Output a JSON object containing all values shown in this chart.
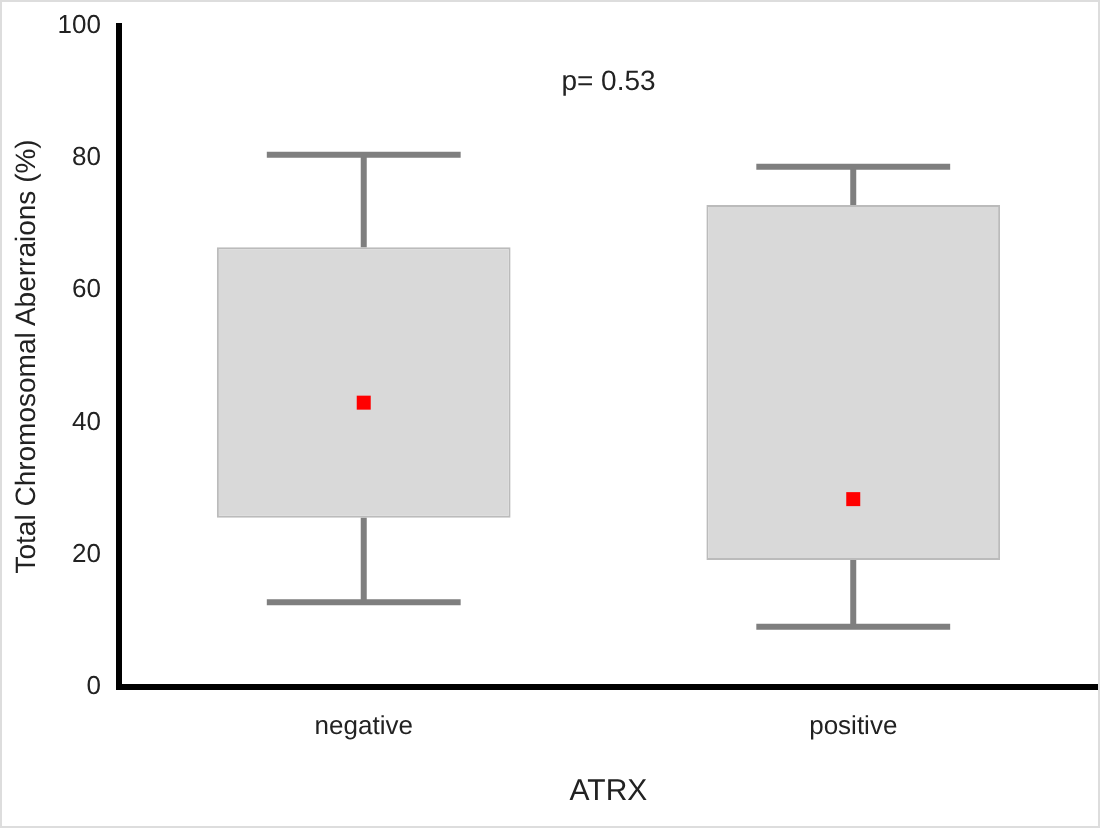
{
  "chart_data": {
    "type": "box",
    "xlabel": "ATRX",
    "ylabel": "Total Chromosomal Aberraions (%)",
    "categories": [
      "negative",
      "positive"
    ],
    "series": [
      {
        "color": "#d9d9d9",
        "boxes": [
          {
            "low": 12.8,
            "q1": 25.6,
            "median": 43,
            "q3": 66.5,
            "high": 80.5
          },
          {
            "low": 9.1,
            "q1": 19.2,
            "median": 28.4,
            "q3": 72.9,
            "high": 78.7
          }
        ]
      }
    ],
    "ylim": [
      0,
      100
    ],
    "yticks": [
      0,
      20,
      40,
      60,
      80,
      100
    ],
    "grid": false,
    "legend": false,
    "marker": "square",
    "annotations": [
      "p= 0.53"
    ]
  }
}
